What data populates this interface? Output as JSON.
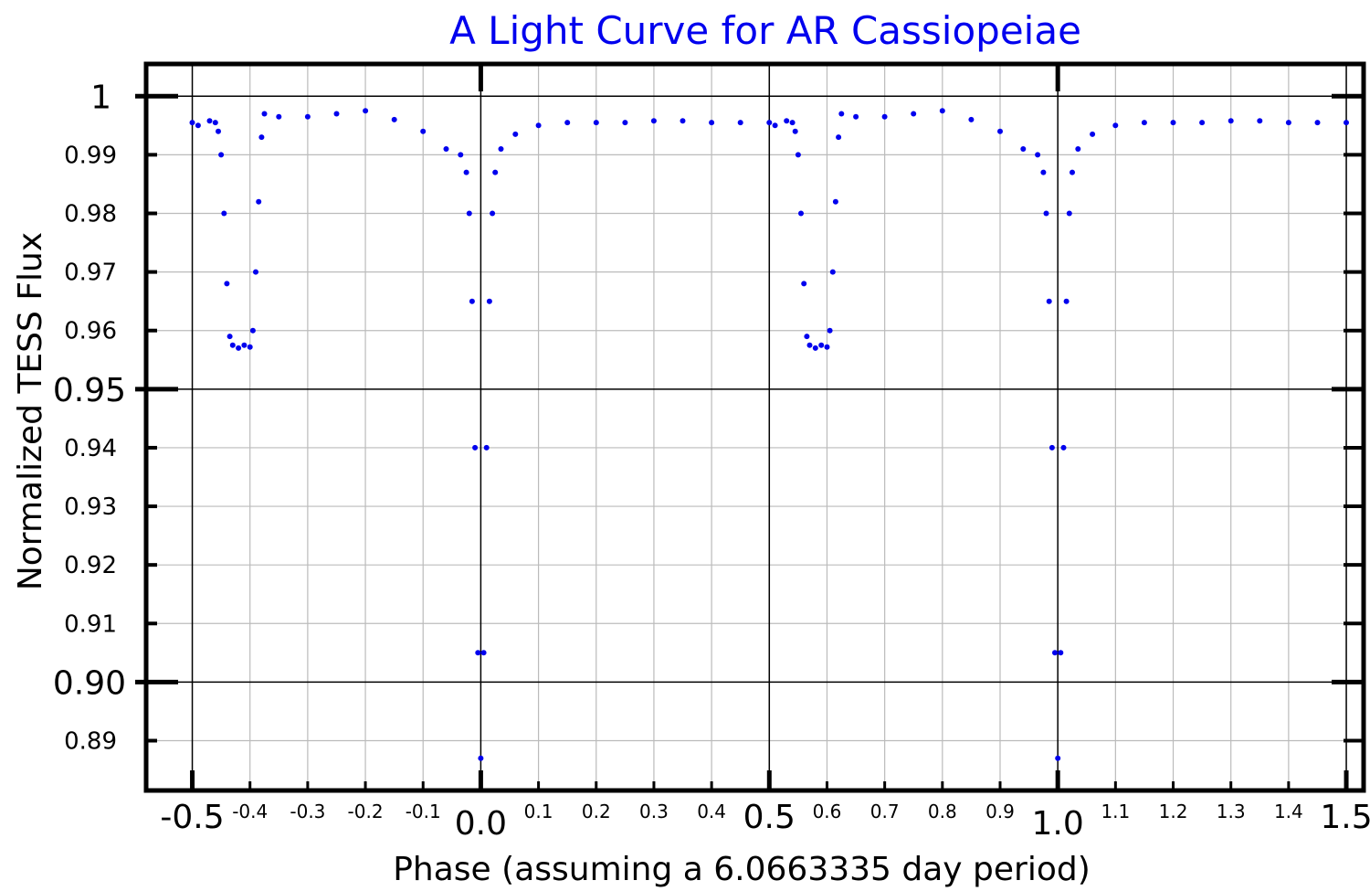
{
  "chart_data": {
    "type": "scatter",
    "title": "A Light Curve for AR Cassiopeiae",
    "xlabel": "Phase (assuming a 6.0663335 day period)",
    "ylabel": "Normalized TESS Flux",
    "xlim": [
      -0.58,
      1.53
    ],
    "ylim": [
      0.8815,
      1.0055
    ],
    "grid": true,
    "legend": "none",
    "colors": {
      "points": "#0000ee",
      "title": "#0000ee",
      "grid_minor": "#bbbbbb",
      "grid_major": "#000000"
    },
    "x_major_ticks": [
      {
        "value": -0.5,
        "label": "-0.5"
      },
      {
        "value": 0.0,
        "label": "0.0"
      },
      {
        "value": 0.5,
        "label": "0.5"
      },
      {
        "value": 1.0,
        "label": "1.0"
      },
      {
        "value": 1.5,
        "label": "1.5"
      }
    ],
    "x_minor_ticks": [
      {
        "value": -0.4,
        "label": "-0.4"
      },
      {
        "value": -0.3,
        "label": "-0.3"
      },
      {
        "value": -0.2,
        "label": "-0.2"
      },
      {
        "value": -0.1,
        "label": "-0.1"
      },
      {
        "value": 0.1,
        "label": "0.1"
      },
      {
        "value": 0.2,
        "label": "0.2"
      },
      {
        "value": 0.3,
        "label": "0.3"
      },
      {
        "value": 0.4,
        "label": "0.4"
      },
      {
        "value": 0.6,
        "label": "0.6"
      },
      {
        "value": 0.7,
        "label": "0.7"
      },
      {
        "value": 0.8,
        "label": "0.8"
      },
      {
        "value": 0.9,
        "label": "0.9"
      },
      {
        "value": 1.1,
        "label": "1.1"
      },
      {
        "value": 1.2,
        "label": "1.2"
      },
      {
        "value": 1.3,
        "label": "1.3"
      },
      {
        "value": 1.4,
        "label": "1.4"
      },
      {
        "value": 1.5,
        "label": ""
      }
    ],
    "y_major_ticks": [
      {
        "value": 1.0,
        "label": "1"
      },
      {
        "value": 0.95,
        "label": "0.95"
      },
      {
        "value": 0.9,
        "label": "0.90"
      }
    ],
    "y_minor_ticks": [
      {
        "value": 0.99,
        "label": "0.99"
      },
      {
        "value": 0.98,
        "label": "0.98"
      },
      {
        "value": 0.97,
        "label": "0.97"
      },
      {
        "value": 0.96,
        "label": "0.96"
      },
      {
        "value": 0.94,
        "label": "0.94"
      },
      {
        "value": 0.93,
        "label": "0.93"
      },
      {
        "value": 0.92,
        "label": "0.92"
      },
      {
        "value": 0.91,
        "label": "0.91"
      },
      {
        "value": 0.89,
        "label": "0.89"
      }
    ],
    "series": [
      {
        "points": [
          [
            -0.5,
            0.9955
          ],
          [
            -0.49,
            0.995
          ],
          [
            -0.47,
            0.9958
          ],
          [
            -0.46,
            0.9955
          ],
          [
            -0.455,
            0.994
          ],
          [
            -0.45,
            0.99
          ],
          [
            -0.445,
            0.98
          ],
          [
            -0.44,
            0.968
          ],
          [
            -0.435,
            0.959
          ],
          [
            -0.43,
            0.9575
          ],
          [
            -0.42,
            0.957
          ],
          [
            -0.41,
            0.9575
          ],
          [
            -0.4,
            0.9572
          ],
          [
            -0.395,
            0.96
          ],
          [
            -0.39,
            0.97
          ],
          [
            -0.385,
            0.982
          ],
          [
            -0.38,
            0.993
          ],
          [
            -0.375,
            0.997
          ],
          [
            -0.35,
            0.9965
          ],
          [
            -0.3,
            0.9965
          ],
          [
            -0.25,
            0.997
          ],
          [
            -0.2,
            0.9975
          ],
          [
            -0.15,
            0.996
          ],
          [
            -0.1,
            0.994
          ],
          [
            -0.06,
            0.991
          ],
          [
            -0.035,
            0.99
          ],
          [
            -0.025,
            0.987
          ],
          [
            -0.02,
            0.98
          ],
          [
            -0.015,
            0.965
          ],
          [
            -0.01,
            0.94
          ],
          [
            -0.005,
            0.905
          ],
          [
            0.0,
            0.887
          ],
          [
            0.005,
            0.905
          ],
          [
            0.01,
            0.94
          ],
          [
            0.015,
            0.965
          ],
          [
            0.02,
            0.98
          ],
          [
            0.025,
            0.987
          ],
          [
            0.035,
            0.991
          ],
          [
            0.06,
            0.9935
          ],
          [
            0.1,
            0.995
          ],
          [
            0.15,
            0.9955
          ],
          [
            0.2,
            0.9955
          ],
          [
            0.25,
            0.9955
          ],
          [
            0.3,
            0.9958
          ],
          [
            0.35,
            0.9958
          ],
          [
            0.4,
            0.9955
          ],
          [
            0.45,
            0.9955
          ],
          [
            0.5,
            0.9955
          ],
          [
            0.51,
            0.995
          ],
          [
            0.53,
            0.9958
          ],
          [
            0.54,
            0.9955
          ],
          [
            0.545,
            0.994
          ],
          [
            0.55,
            0.99
          ],
          [
            0.555,
            0.98
          ],
          [
            0.56,
            0.968
          ],
          [
            0.565,
            0.959
          ],
          [
            0.57,
            0.9575
          ],
          [
            0.58,
            0.957
          ],
          [
            0.59,
            0.9575
          ],
          [
            0.6,
            0.9572
          ],
          [
            0.605,
            0.96
          ],
          [
            0.61,
            0.97
          ],
          [
            0.615,
            0.982
          ],
          [
            0.62,
            0.993
          ],
          [
            0.625,
            0.997
          ],
          [
            0.65,
            0.9965
          ],
          [
            0.7,
            0.9965
          ],
          [
            0.75,
            0.997
          ],
          [
            0.8,
            0.9975
          ],
          [
            0.85,
            0.996
          ],
          [
            0.9,
            0.994
          ],
          [
            0.94,
            0.991
          ],
          [
            0.965,
            0.99
          ],
          [
            0.975,
            0.987
          ],
          [
            0.98,
            0.98
          ],
          [
            0.985,
            0.965
          ],
          [
            0.99,
            0.94
          ],
          [
            0.995,
            0.905
          ],
          [
            1.0,
            0.887
          ],
          [
            1.005,
            0.905
          ],
          [
            1.01,
            0.94
          ],
          [
            1.015,
            0.965
          ],
          [
            1.02,
            0.98
          ],
          [
            1.025,
            0.987
          ],
          [
            1.035,
            0.991
          ],
          [
            1.06,
            0.9935
          ],
          [
            1.1,
            0.995
          ],
          [
            1.15,
            0.9955
          ],
          [
            1.2,
            0.9955
          ],
          [
            1.25,
            0.9955
          ],
          [
            1.3,
            0.9958
          ],
          [
            1.35,
            0.9958
          ],
          [
            1.4,
            0.9955
          ],
          [
            1.45,
            0.9955
          ],
          [
            1.5,
            0.9955
          ]
        ]
      }
    ]
  }
}
